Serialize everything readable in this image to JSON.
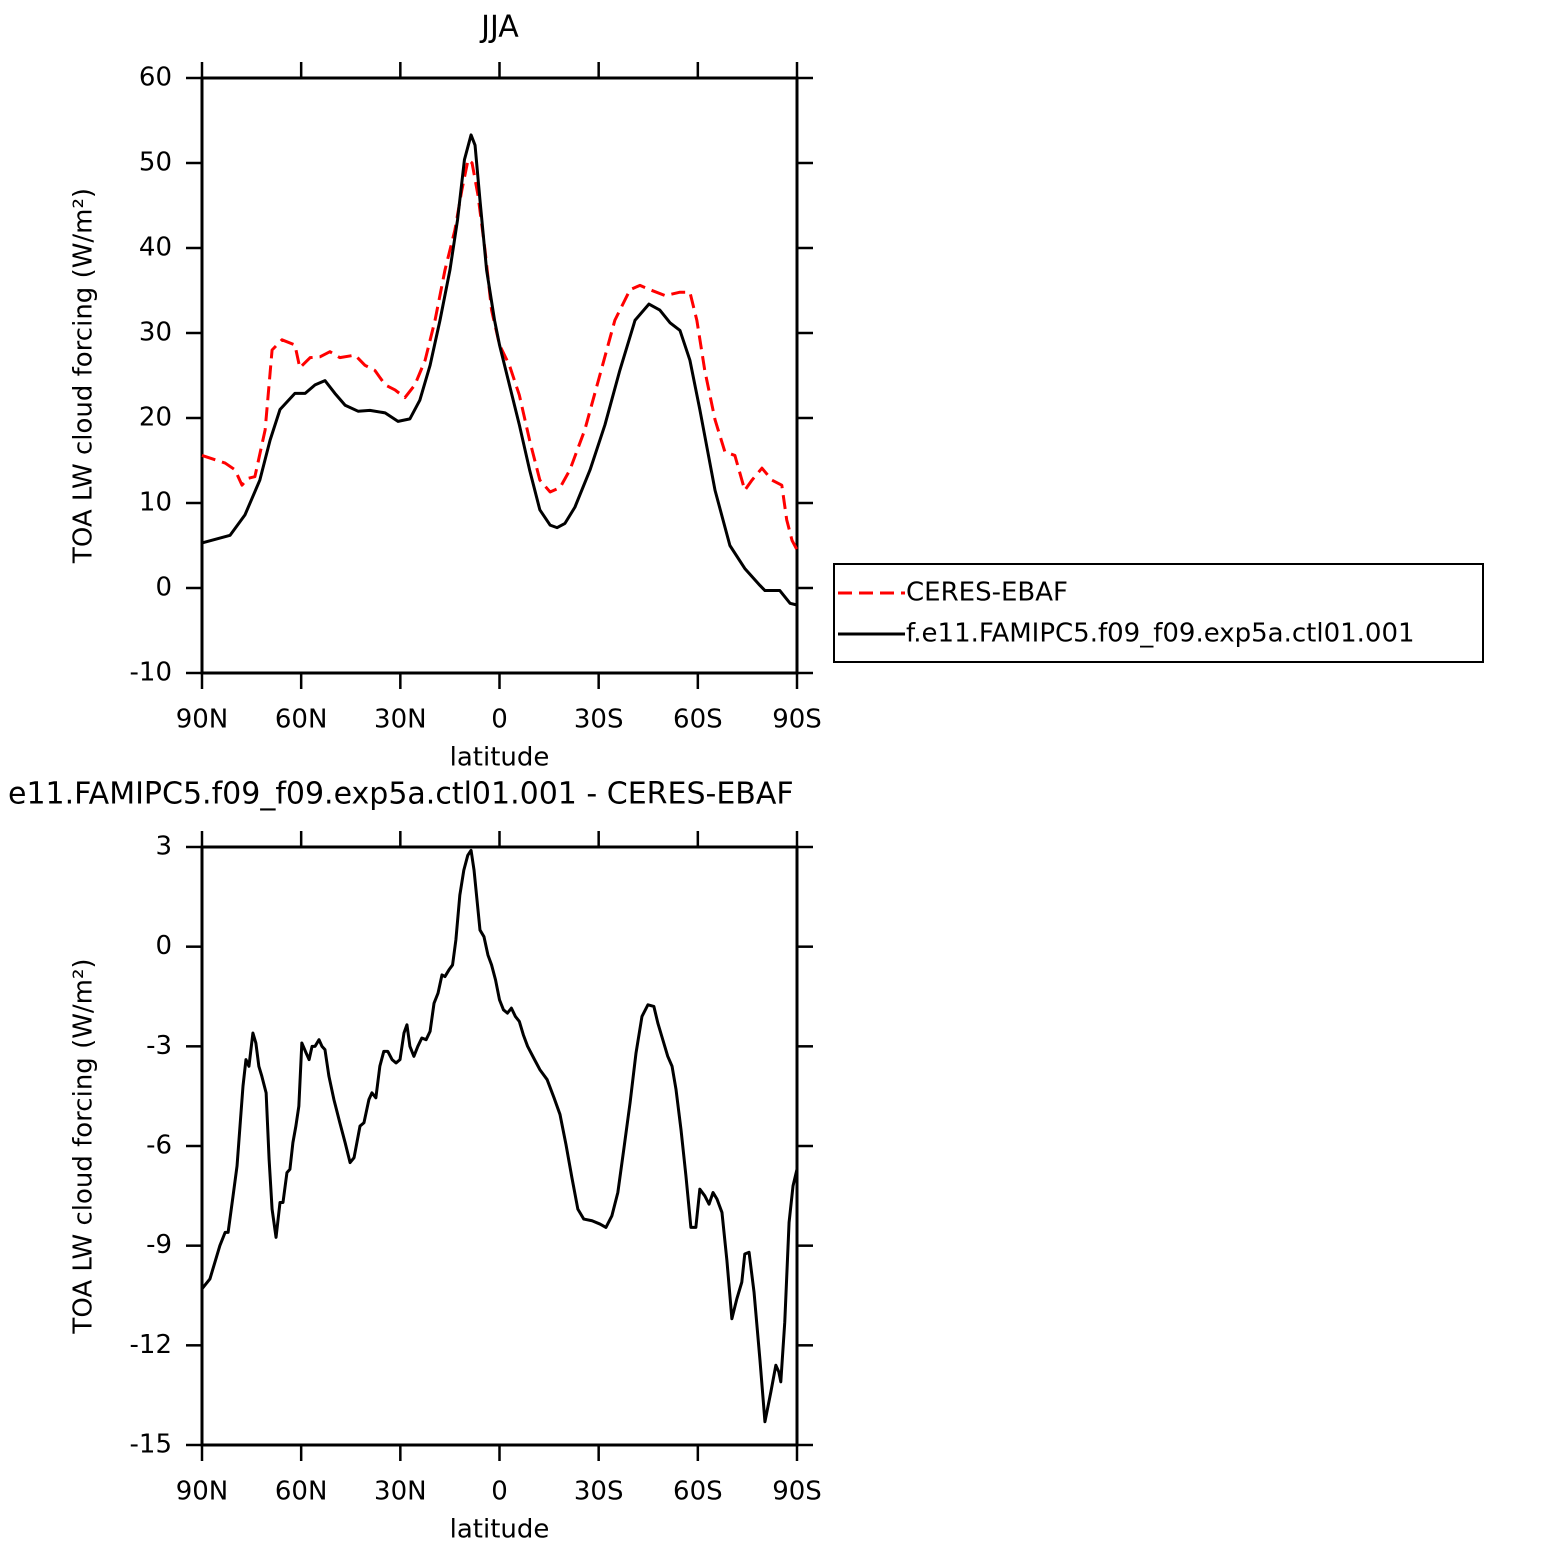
{
  "chart_data": [
    {
      "type": "line",
      "title": "JJA",
      "xlabel": "latitude",
      "ylabel": "TOA LW cloud forcing (W/m²)",
      "xlim": [
        90,
        -90
      ],
      "ylim": [
        -10,
        60
      ],
      "xticks": [
        {
          "value": 90,
          "label": "90N"
        },
        {
          "value": 60,
          "label": "60N"
        },
        {
          "value": 30,
          "label": "30N"
        },
        0,
        {
          "value": -30,
          "label": "30S"
        },
        {
          "value": -60,
          "label": "60S"
        },
        {
          "value": -90,
          "label": "90S"
        }
      ],
      "yticks": [
        -10,
        0,
        10,
        20,
        30,
        40,
        50,
        60
      ],
      "legend": "right",
      "series": [
        {
          "name": "CERES-EBAF",
          "color": "#ff0000",
          "dash": true,
          "x": [
            90,
            86.1,
            83,
            80,
            77.9,
            76.1,
            74,
            70.9,
            68.8,
            65.8,
            61.9,
            60.4,
            57.3,
            54.3,
            51.3,
            48.3,
            43.7,
            40.7,
            37.7,
            34.6,
            31.6,
            28.6,
            25.6,
            22.5,
            19.5,
            16.5,
            13.5,
            11.4,
            9.5,
            8.3,
            6.5,
            4.4,
            2.4,
            0,
            -3,
            -6,
            -9.1,
            -12.2,
            -15.3,
            -18.3,
            -21.3,
            -25.8,
            -30.4,
            -34.9,
            -39.5,
            -42.5,
            -45.5,
            -50.1,
            -54.6,
            -57.6,
            -59.7,
            -62.1,
            -65.2,
            -68.2,
            -71.2,
            -74.2,
            -76.4,
            -79.4,
            -82.4,
            -85.4,
            -86.9,
            -88.5,
            -90
          ],
          "values": [
            15.6,
            15.1,
            14.7,
            13.9,
            12.1,
            12.9,
            13.1,
            18.6,
            28,
            29.2,
            28.6,
            25.9,
            27.1,
            27.2,
            27.8,
            27.1,
            27.4,
            26.2,
            25.6,
            23.9,
            23.3,
            22.4,
            23.9,
            26.8,
            31.5,
            37.4,
            42.1,
            46.8,
            50.4,
            50,
            46.2,
            39.8,
            32.7,
            28.6,
            26.2,
            22.7,
            17.4,
            12.7,
            11.3,
            11.8,
            13.9,
            18.6,
            25.1,
            31.5,
            35.1,
            35.6,
            35.1,
            34.4,
            34.8,
            34.8,
            31.5,
            25.6,
            19.8,
            16,
            15.6,
            11.5,
            12.7,
            14.1,
            12.7,
            12.1,
            8,
            5.6,
            4.5
          ]
        },
        {
          "name": "f.e11.FAMIPC5.f09_f09.exp5a.ctl01.001",
          "color": "#000000",
          "dash": false,
          "x": [
            90,
            81.5,
            77,
            72.5,
            69.4,
            66.4,
            61.9,
            58.8,
            55.8,
            52.8,
            49.8,
            46.7,
            42.8,
            39.2,
            34.6,
            30.7,
            27.1,
            24.1,
            21,
            18,
            15,
            12.7,
            10.6,
            8.6,
            7.4,
            5.9,
            3.9,
            1.5,
            0,
            -3,
            -6,
            -9.1,
            -12.2,
            -15.3,
            -17.4,
            -19.8,
            -22.8,
            -27.4,
            -31.9,
            -36.4,
            -41,
            -45.2,
            -48.5,
            -51.6,
            -54.6,
            -57.6,
            -60.6,
            -65.2,
            -69.7,
            -74.2,
            -78.8,
            -80.3,
            -84.8,
            -87.9,
            -90
          ],
          "values": [
            5.3,
            6.2,
            8.6,
            12.7,
            17.4,
            21,
            22.9,
            22.9,
            23.9,
            24.4,
            22.9,
            21.5,
            20.8,
            20.9,
            20.6,
            19.6,
            19.9,
            22.1,
            26.2,
            31.5,
            37.4,
            43.3,
            50.4,
            53.3,
            52.1,
            45.6,
            37.4,
            31.5,
            28.6,
            23.9,
            19.2,
            13.9,
            9.2,
            7.4,
            7.1,
            7.6,
            9.5,
            13.9,
            19.2,
            25.6,
            31.5,
            33.4,
            32.7,
            31.2,
            30.3,
            26.8,
            21,
            11.5,
            5,
            2.3,
            0.3,
            -0.3,
            -0.3,
            -1.8,
            -2
          ]
        }
      ]
    },
    {
      "type": "line",
      "title": "e11.FAMIPC5.f09_f09.exp5a.ctl01.001 - CERES-EBAF",
      "xlabel": "latitude",
      "ylabel": "TOA LW cloud forcing (W/m²)",
      "xlim": [
        90,
        -90
      ],
      "ylim": [
        -15,
        3
      ],
      "xticks": [
        {
          "value": 90,
          "label": "90N"
        },
        {
          "value": 60,
          "label": "60N"
        },
        {
          "value": 30,
          "label": "30N"
        },
        0,
        {
          "value": -30,
          "label": "30S"
        },
        {
          "value": -60,
          "label": "60S"
        },
        {
          "value": -90,
          "label": "90S"
        }
      ],
      "yticks": [
        -15,
        -12,
        -9,
        -6,
        -3,
        0,
        3
      ],
      "color": "#000000",
      "x": [
        90,
        87.6,
        86.1,
        84.6,
        83,
        82.1,
        80.6,
        79.4,
        78.5,
        77.6,
        76.7,
        75.8,
        74.6,
        73.7,
        72.8,
        71.9,
        70.6,
        69.7,
        68.8,
        67.6,
        66.4,
        65.5,
        64.3,
        63.4,
        62.5,
        61.6,
        60.7,
        59.8,
        58.5,
        57.6,
        56.7,
        55.8,
        54.6,
        53.7,
        52.8,
        51.6,
        50.1,
        48.3,
        46.7,
        45.2,
        44,
        42.2,
        41,
        39.5,
        38.6,
        37.4,
        36.2,
        35,
        33.8,
        32.5,
        31.3,
        30.1,
        28.9,
        28,
        27.1,
        25.9,
        24.7,
        23.5,
        22.2,
        21,
        19.8,
        18.6,
        17.4,
        16.5,
        15.3,
        14.2,
        13.2,
        12,
        10.8,
        9.6,
        8.6,
        7.7,
        6.8,
        5.9,
        4.7,
        3.5,
        2.4,
        1.2,
        0,
        -1.2,
        -2.4,
        -3.6,
        -4.8,
        -6,
        -7.2,
        -8.5,
        -10.6,
        -12.2,
        -14.4,
        -16.5,
        -18.3,
        -20.1,
        -21.9,
        -23.7,
        -25.5,
        -28,
        -30.4,
        -32.2,
        -34,
        -35.8,
        -37.6,
        -39.5,
        -41.3,
        -43.1,
        -44.9,
        -46.7,
        -47.9,
        -49.1,
        -50.9,
        -52.2,
        -53.4,
        -54.9,
        -56.4,
        -57.9,
        -59.4,
        -60.6,
        -62.1,
        -63.4,
        -64.6,
        -65.8,
        -67.3,
        -68.8,
        -70.3,
        -71.8,
        -73.3,
        -74.2,
        -75.5,
        -77,
        -78.8,
        -80.3,
        -82.1,
        -83.6,
        -84.5,
        -85.1,
        -86.3,
        -87.6,
        -88.8,
        -90
      ],
      "values": [
        -10.3,
        -10,
        -9.5,
        -9,
        -8.6,
        -8.6,
        -7.5,
        -6.6,
        -5.4,
        -4.2,
        -3.4,
        -3.6,
        -2.6,
        -2.9,
        -3.6,
        -3.9,
        -4.4,
        -6.4,
        -7.9,
        -8.75,
        -7.7,
        -7.7,
        -6.8,
        -6.7,
        -5.9,
        -5.4,
        -4.8,
        -2.9,
        -3.2,
        -3.4,
        -3,
        -3,
        -2.8,
        -3,
        -3.1,
        -3.9,
        -4.6,
        -5.3,
        -5.9,
        -6.5,
        -6.35,
        -5.4,
        -5.3,
        -4.6,
        -4.4,
        -4.55,
        -3.6,
        -3.15,
        -3.15,
        -3.4,
        -3.5,
        -3.4,
        -2.6,
        -2.35,
        -3,
        -3.3,
        -3,
        -2.75,
        -2.8,
        -2.55,
        -1.7,
        -1.4,
        -0.85,
        -0.9,
        -0.7,
        -0.55,
        0.2,
        1.55,
        2.3,
        2.75,
        2.9,
        2.3,
        1.4,
        0.5,
        0.3,
        -0.25,
        -0.55,
        -1,
        -1.6,
        -1.9,
        -2,
        -1.85,
        -2.1,
        -2.25,
        -2.65,
        -3,
        -3.4,
        -3.7,
        -4,
        -4.55,
        -5.05,
        -5.95,
        -6.95,
        -7.9,
        -8.2,
        -8.25,
        -8.35,
        -8.45,
        -8.1,
        -7.4,
        -6.1,
        -4.7,
        -3.2,
        -2.1,
        -1.75,
        -1.8,
        -2.3,
        -2.7,
        -3.3,
        -3.6,
        -4.3,
        -5.5,
        -6.9,
        -8.45,
        -8.45,
        -7.3,
        -7.5,
        -7.75,
        -7.4,
        -7.6,
        -8,
        -9.45,
        -11.2,
        -10.6,
        -10.1,
        -9.25,
        -9.2,
        -10.4,
        -12.45,
        -14.3,
        -13.4,
        -12.6,
        -12.8,
        -13.1,
        -11.3,
        -8.3,
        -7.2,
        -6.7
      ]
    }
  ]
}
